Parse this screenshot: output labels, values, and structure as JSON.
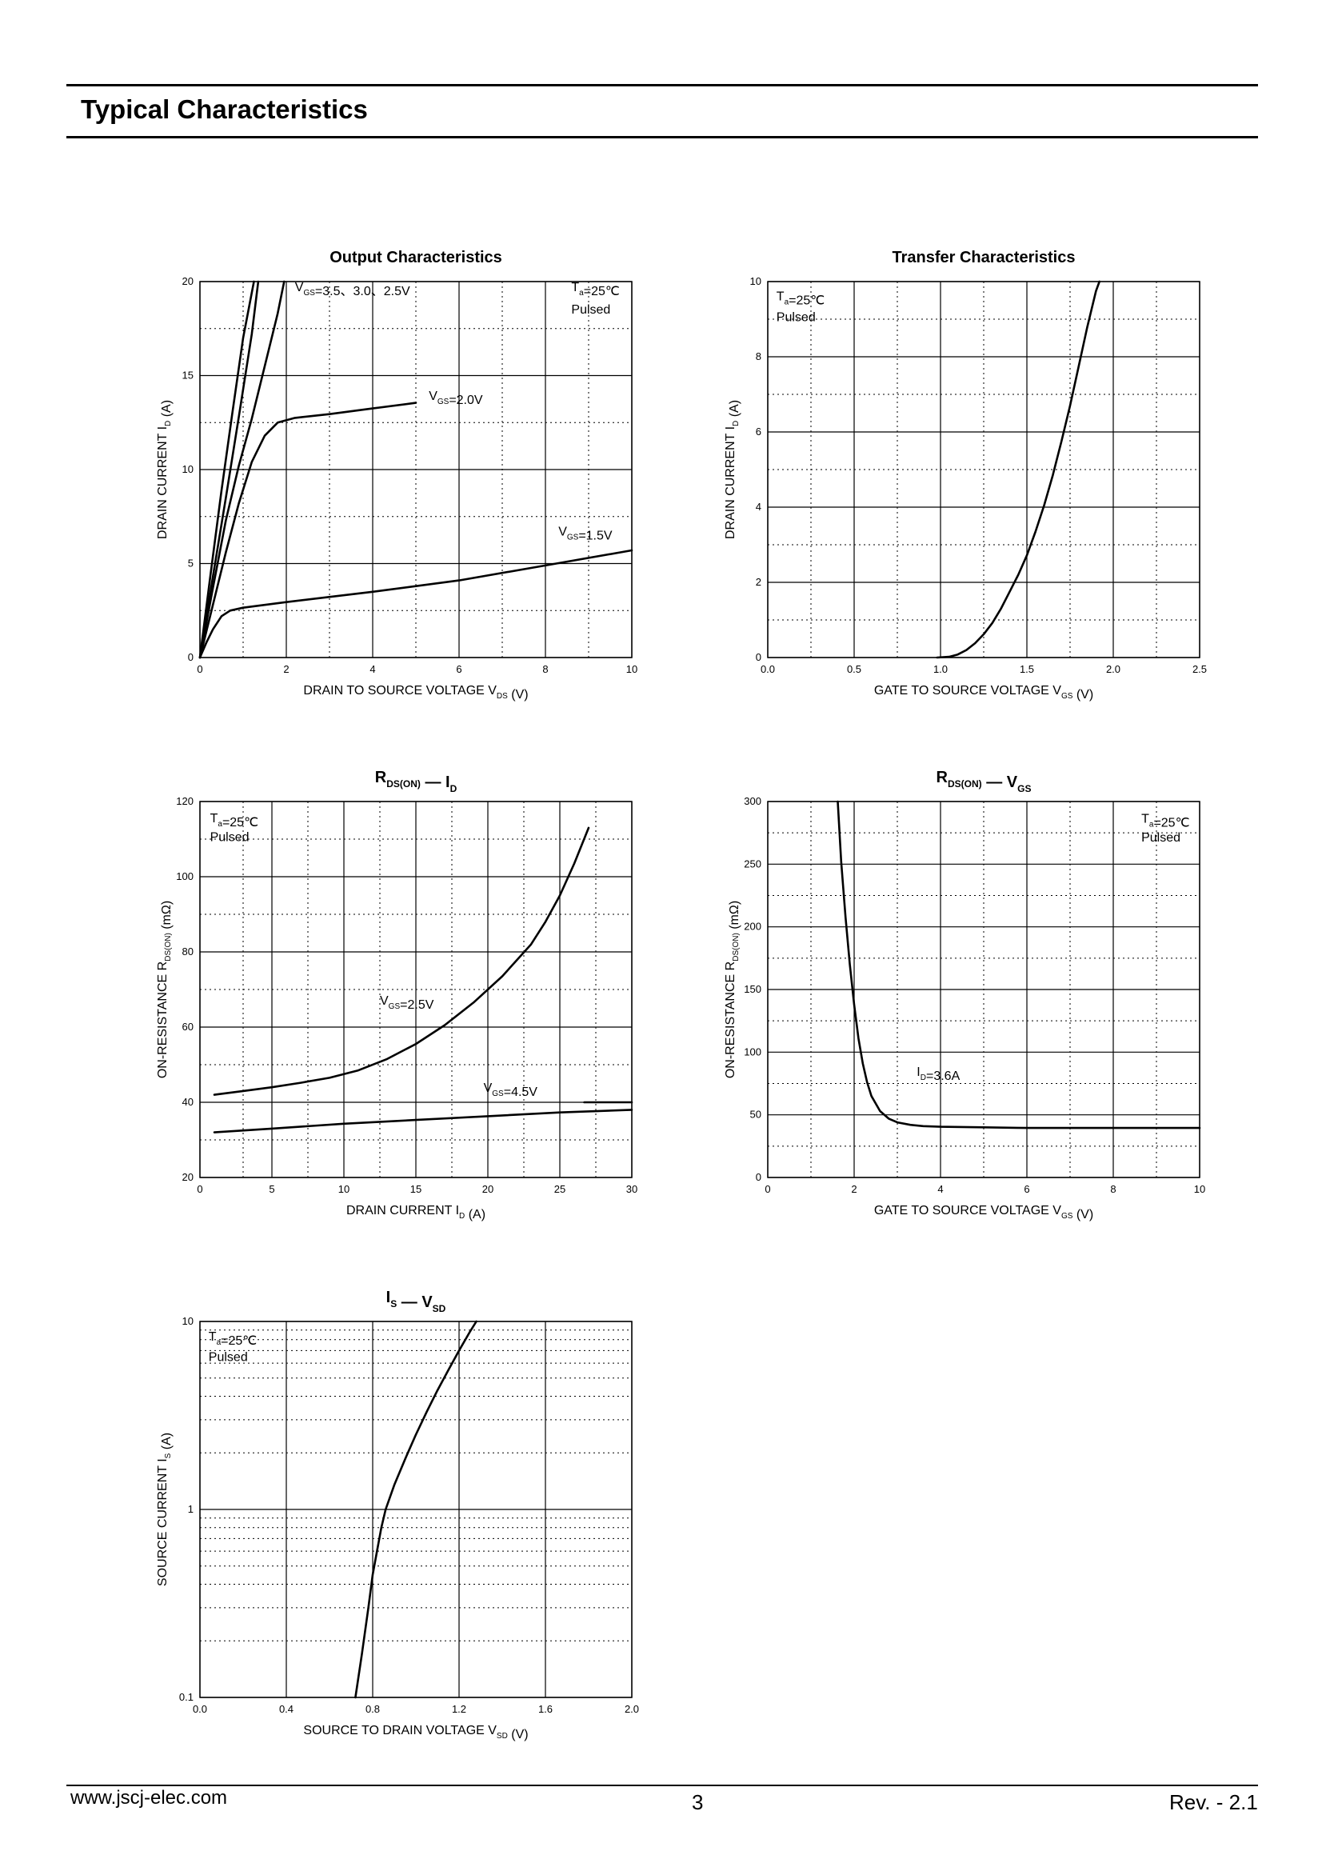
{
  "page": {
    "title": "Typical Characteristics",
    "footer_url": "www.jscj-elec.com",
    "footer_page": "3",
    "footer_rev": "Rev. - 2.1"
  },
  "chart_data": [
    {
      "id": "output",
      "type": "line",
      "title": [
        {
          "t": "Output Characteristics"
        }
      ],
      "xlabel": [
        {
          "t": "DRAIN TO SOURCE VOLTAGE   V"
        },
        {
          "t": "DS",
          "sub": true
        },
        {
          "t": "   (V)"
        }
      ],
      "ylabel": [
        {
          "t": "DRAIN CURRENT   I"
        },
        {
          "t": "D",
          "sub": true
        },
        {
          "t": "   (A)"
        }
      ],
      "xlim": [
        0,
        10
      ],
      "ylim": [
        0,
        20
      ],
      "xticks": [
        0,
        2,
        4,
        6,
        8,
        10
      ],
      "xtick_labels": [
        "0",
        "2",
        "4",
        "6",
        "8",
        "10"
      ],
      "yticks": [
        0,
        5,
        10,
        15,
        20
      ],
      "ytick_labels": [
        "0",
        "5",
        "10",
        "15",
        "20"
      ],
      "grid_dotted_y": [
        2.5,
        7.5,
        12.5,
        17.5
      ],
      "grid_dotted_x": [
        1,
        3,
        5,
        7,
        9
      ],
      "grid": true,
      "annotations": [
        {
          "x": 2.2,
          "y": 19.5,
          "parts": [
            {
              "t": "V"
            },
            {
              "t": "GS",
              "sub": true
            },
            {
              "t": "=3.5、3.0、2.5V"
            }
          ]
        },
        {
          "x": 8.6,
          "y": 19.5,
          "parts": [
            {
              "t": "T"
            },
            {
              "t": "a",
              "sub": true
            },
            {
              "t": "=25℃"
            }
          ]
        },
        {
          "x": 8.6,
          "y": 18.3,
          "parts": [
            {
              "t": "Pulsed"
            }
          ]
        },
        {
          "x": 5.3,
          "y": 13.7,
          "parts": [
            {
              "t": "V"
            },
            {
              "t": "GS",
              "sub": true
            },
            {
              "t": "=2.0V"
            }
          ]
        },
        {
          "x": 8.3,
          "y": 6.5,
          "parts": [
            {
              "t": "V"
            },
            {
              "t": "GS",
              "sub": true
            },
            {
              "t": "=1.5V"
            }
          ]
        }
      ],
      "series": [
        {
          "x": [
            0,
            0.25,
            0.5,
            0.75,
            1.0,
            1.25
          ],
          "y": [
            0,
            4.5,
            8.9,
            13.0,
            17.0,
            20.0
          ]
        },
        {
          "x": [
            0,
            0.3,
            0.6,
            0.9,
            1.2,
            1.35
          ],
          "y": [
            0,
            4.3,
            8.5,
            12.8,
            17.2,
            20.0
          ]
        },
        {
          "x": [
            0,
            0.3,
            0.6,
            0.9,
            1.2,
            1.5,
            1.8,
            1.95
          ],
          "y": [
            0,
            3.7,
            7.3,
            10.2,
            12.7,
            15.5,
            18.3,
            20.0
          ]
        },
        {
          "x": [
            0,
            0.3,
            0.6,
            0.9,
            1.2,
            1.5,
            1.8,
            2.2,
            3.0,
            4.0,
            5.0
          ],
          "y": [
            0,
            2.8,
            5.6,
            8.2,
            10.4,
            11.8,
            12.5,
            12.75,
            12.95,
            13.25,
            13.55
          ]
        },
        {
          "x": [
            0,
            0.15,
            0.3,
            0.5,
            0.7,
            1.0,
            2.0,
            4.0,
            6.0,
            8.0,
            10.0
          ],
          "y": [
            0,
            0.8,
            1.5,
            2.2,
            2.5,
            2.65,
            2.95,
            3.5,
            4.1,
            4.9,
            5.7
          ]
        }
      ]
    },
    {
      "id": "transfer",
      "type": "line",
      "title": [
        {
          "t": "Transfer Characteristics"
        }
      ],
      "xlabel": [
        {
          "t": "GATE TO SOURCE VOLTAGE   V"
        },
        {
          "t": "GS",
          "sub": true
        },
        {
          "t": "   (V)"
        }
      ],
      "ylabel": [
        {
          "t": "DRAIN CURRENT   I"
        },
        {
          "t": "D",
          "sub": true
        },
        {
          "t": "   (A)"
        }
      ],
      "xlim": [
        0,
        2.5
      ],
      "ylim": [
        0,
        10
      ],
      "xticks": [
        0,
        0.5,
        1.0,
        1.5,
        2.0,
        2.5
      ],
      "xtick_labels": [
        "0.0",
        "0.5",
        "1.0",
        "1.5",
        "2.0",
        "2.5"
      ],
      "yticks": [
        0,
        2,
        4,
        6,
        8,
        10
      ],
      "ytick_labels": [
        "0",
        "2",
        "4",
        "6",
        "8",
        "10"
      ],
      "grid_dotted_y": [
        1,
        3,
        5,
        7,
        9
      ],
      "grid_dotted_x": [
        0.25,
        0.75,
        1.25,
        1.75,
        2.25
      ],
      "grid": true,
      "annotations": [
        {
          "x": 0.05,
          "y": 9.5,
          "parts": [
            {
              "t": "T"
            },
            {
              "t": "a",
              "sub": true
            },
            {
              "t": "=25℃"
            }
          ]
        },
        {
          "x": 0.05,
          "y": 8.95,
          "parts": [
            {
              "t": "Pulsed"
            }
          ]
        }
      ],
      "series": [
        {
          "x": [
            0.98,
            1.05,
            1.1,
            1.15,
            1.2,
            1.25,
            1.3,
            1.35,
            1.4,
            1.45,
            1.5,
            1.55,
            1.6,
            1.65,
            1.7,
            1.75,
            1.8,
            1.85,
            1.9,
            1.92
          ],
          "y": [
            0,
            0.02,
            0.08,
            0.2,
            0.38,
            0.62,
            0.92,
            1.3,
            1.75,
            2.2,
            2.72,
            3.35,
            4.05,
            4.85,
            5.75,
            6.7,
            7.75,
            8.8,
            9.75,
            10.0
          ]
        }
      ]
    },
    {
      "id": "rds_id",
      "type": "line",
      "title": [
        {
          "t": "R"
        },
        {
          "t": "DS(ON)",
          "sub": true
        },
        {
          "t": "  —  I"
        },
        {
          "t": "D",
          "sub": true
        }
      ],
      "xlabel": [
        {
          "t": "DRAIN CURRENT   I"
        },
        {
          "t": "D",
          "sub": true
        },
        {
          "t": "   (A)"
        }
      ],
      "ylabel": [
        {
          "t": "ON-RESISTANCE   R"
        },
        {
          "t": "DS(ON)",
          "sub": true
        },
        {
          "t": "   (mΩ)"
        }
      ],
      "xlim": [
        0,
        30
      ],
      "ylim": [
        20,
        120
      ],
      "xticks": [
        0,
        5,
        10,
        15,
        20,
        25,
        30
      ],
      "xtick_labels": [
        "0",
        "5",
        "10",
        "15",
        "20",
        "25",
        "30"
      ],
      "yticks": [
        20,
        40,
        60,
        80,
        100,
        120
      ],
      "ytick_labels": [
        "20",
        "40",
        "60",
        "80",
        "100",
        "120"
      ],
      "grid_dotted_y": [
        30,
        50,
        70,
        90,
        110
      ],
      "grid_dotted_x": [
        3,
        7.5,
        12.5,
        17.5,
        22.5,
        27.5
      ],
      "grid": true,
      "annotations": [
        {
          "x": 0.7,
          "y": 114.5,
          "parts": [
            {
              "t": "T"
            },
            {
              "t": "a",
              "sub": true
            },
            {
              "t": "=25℃"
            }
          ]
        },
        {
          "x": 0.7,
          "y": 109.5,
          "parts": [
            {
              "t": "Pulsed"
            }
          ]
        },
        {
          "x": 12.5,
          "y": 66,
          "parts": [
            {
              "t": "V"
            },
            {
              "t": "GS",
              "sub": true
            },
            {
              "t": "=2.5V"
            }
          ]
        },
        {
          "x": 19.7,
          "y": 42.8,
          "parts": [
            {
              "t": "V"
            },
            {
              "t": "GS",
              "sub": true
            },
            {
              "t": "=4.5V"
            }
          ]
        }
      ],
      "series": [
        {
          "x": [
            1,
            3,
            5,
            7,
            9,
            11,
            13,
            15,
            17,
            19,
            21,
            23,
            24,
            25,
            26,
            27
          ],
          "y": [
            42,
            43,
            44,
            45.2,
            46.5,
            48.5,
            51.5,
            55.5,
            60.5,
            66.5,
            73.5,
            82,
            88,
            95,
            103.5,
            113
          ]
        },
        {
          "x": [
            1,
            5,
            10,
            15,
            20,
            25,
            30
          ],
          "y": [
            32,
            33,
            34.3,
            35.3,
            36.3,
            37.3,
            38
          ]
        },
        {
          "x": [
            26.7,
            30
          ],
          "y": [
            40,
            40
          ]
        }
      ]
    },
    {
      "id": "rds_vgs",
      "type": "line",
      "title": [
        {
          "t": "R"
        },
        {
          "t": "DS(ON)",
          "sub": true
        },
        {
          "t": "  —  V"
        },
        {
          "t": "GS",
          "sub": true
        }
      ],
      "xlabel": [
        {
          "t": "GATE TO SOURCE VOLTAGE   V"
        },
        {
          "t": "GS",
          "sub": true
        },
        {
          "t": "   (V)"
        }
      ],
      "ylabel": [
        {
          "t": "ON-RESISTANCE   R"
        },
        {
          "t": "DS(ON)",
          "sub": true
        },
        {
          "t": "   (mΩ)"
        }
      ],
      "xlim": [
        0,
        10
      ],
      "ylim": [
        0,
        300
      ],
      "xticks": [
        0,
        2,
        4,
        6,
        8,
        10
      ],
      "xtick_labels": [
        "0",
        "2",
        "4",
        "6",
        "8",
        "10"
      ],
      "yticks": [
        0,
        50,
        100,
        150,
        200,
        250,
        300
      ],
      "ytick_labels": [
        "0",
        "50",
        "100",
        "150",
        "200",
        "250",
        "300"
      ],
      "grid_dotted_y": [
        25,
        75,
        125,
        175,
        225,
        275
      ],
      "grid_dotted_x": [
        1,
        3,
        5,
        7,
        9
      ],
      "grid": true,
      "annotations": [
        {
          "x": 8.65,
          "y": 283,
          "parts": [
            {
              "t": "T"
            },
            {
              "t": "a",
              "sub": true
            },
            {
              "t": "=25℃"
            }
          ]
        },
        {
          "x": 8.65,
          "y": 268,
          "parts": [
            {
              "t": "Pulsed"
            }
          ]
        },
        {
          "x": 3.45,
          "y": 81,
          "parts": [
            {
              "t": "I"
            },
            {
              "t": "D",
              "sub": true
            },
            {
              "t": "=3.6A"
            }
          ]
        }
      ],
      "series": [
        {
          "x": [
            1.62,
            1.7,
            1.8,
            1.9,
            2.0,
            2.1,
            2.2,
            2.3,
            2.4,
            2.6,
            2.8,
            3.0,
            3.3,
            3.6,
            4.0,
            5.0,
            6.0,
            8.0,
            10.0
          ],
          "y": [
            300,
            252,
            208,
            170,
            138,
            111,
            91,
            76,
            65,
            53,
            47,
            44,
            42,
            41,
            40.5,
            40,
            39.5,
            39.5,
            39.5
          ]
        }
      ]
    },
    {
      "id": "is_vsd",
      "type": "line",
      "title": [
        {
          "t": "I"
        },
        {
          "t": "S",
          "sub": true
        },
        {
          "t": "  —  V"
        },
        {
          "t": "SD",
          "sub": true
        }
      ],
      "xlabel": [
        {
          "t": "SOURCE TO DRAIN VOLTAGE   V"
        },
        {
          "t": "SD",
          "sub": true
        },
        {
          "t": "   (V)"
        }
      ],
      "ylabel": [
        {
          "t": "SOURCE CURRENT   I"
        },
        {
          "t": "S",
          "sub": true
        },
        {
          "t": "   (A)"
        }
      ],
      "xlim": [
        0,
        2.0
      ],
      "ylim": [
        0.1,
        10
      ],
      "yscale": "log",
      "xticks": [
        0,
        0.4,
        0.8,
        1.2,
        1.6,
        2.0
      ],
      "xtick_labels": [
        "0.0",
        "0.4",
        "0.8",
        "1.2",
        "1.6",
        "2.0"
      ],
      "yticks": [
        0.1,
        1,
        10
      ],
      "ytick_labels": [
        "0.1",
        "1",
        "10"
      ],
      "grid_dotted_y": [
        0.2,
        0.3,
        0.4,
        0.5,
        0.6,
        0.7,
        0.8,
        0.9,
        2,
        3,
        4,
        5,
        6,
        7,
        8,
        9
      ],
      "grid_dotted_x": [],
      "grid": true,
      "annotations": [
        {
          "x": 0.04,
          "y": 7.9,
          "parts": [
            {
              "t": "T"
            },
            {
              "t": "a",
              "sub": true
            },
            {
              "t": "=25℃"
            }
          ]
        },
        {
          "x": 0.04,
          "y": 6.15,
          "parts": [
            {
              "t": "Pulsed"
            }
          ]
        }
      ],
      "series": [
        {
          "x": [
            0.72,
            0.75,
            0.78,
            0.8,
            0.82,
            0.84,
            0.86,
            0.9,
            0.95,
            1.0,
            1.05,
            1.1,
            1.15,
            1.2,
            1.25,
            1.28
          ],
          "y": [
            0.1,
            0.17,
            0.3,
            0.45,
            0.6,
            0.8,
            1.0,
            1.35,
            1.85,
            2.5,
            3.3,
            4.3,
            5.5,
            7.0,
            8.8,
            10.0
          ]
        }
      ]
    }
  ]
}
